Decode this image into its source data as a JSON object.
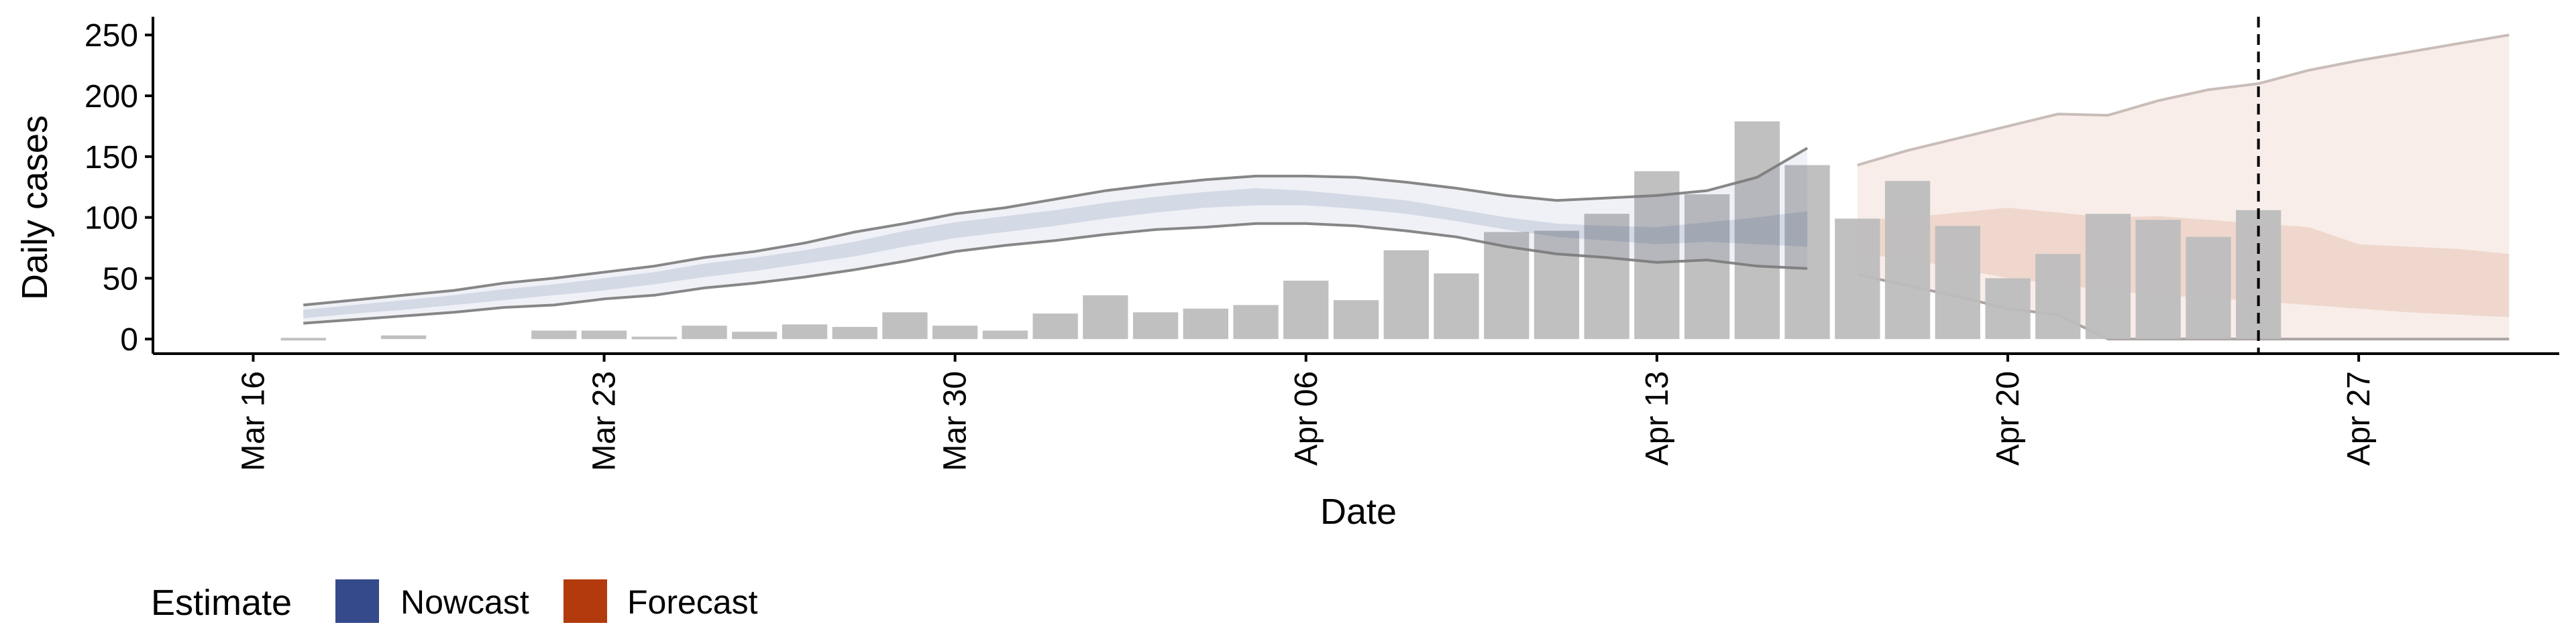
{
  "chart_data": {
    "type": "bar",
    "title": "",
    "xlabel": "Date",
    "ylabel": "Daily cases",
    "ylim": [
      -12,
      265
    ],
    "yticks": [
      0,
      50,
      100,
      150,
      200,
      250
    ],
    "x_ticks": [
      "Mar 16",
      "Mar 23",
      "Mar 30",
      "Apr 06",
      "Apr 13",
      "Apr 20",
      "Apr 27"
    ],
    "x_tick_dates": [
      "2020-03-16",
      "2020-03-23",
      "2020-03-30",
      "2020-04-06",
      "2020-04-13",
      "2020-04-20",
      "2020-04-27"
    ],
    "xlim": [
      "2020-03-14",
      "2020-05-01"
    ],
    "grid": false,
    "vline": {
      "date": "2020-04-25",
      "style": "dashed"
    },
    "legend": {
      "title": "Estimate",
      "placement": "bottom-left",
      "items": [
        {
          "label": "Nowcast",
          "color": "#344a8a"
        },
        {
          "label": "Forecast",
          "color": "#b33a0c"
        }
      ]
    },
    "bars": {
      "color": "#bdbdbd",
      "dates": [
        "2020-03-17",
        "2020-03-18",
        "2020-03-19",
        "2020-03-20",
        "2020-03-21",
        "2020-03-22",
        "2020-03-23",
        "2020-03-24",
        "2020-03-25",
        "2020-03-26",
        "2020-03-27",
        "2020-03-28",
        "2020-03-29",
        "2020-03-30",
        "2020-03-31",
        "2020-04-01",
        "2020-04-02",
        "2020-04-03",
        "2020-04-04",
        "2020-04-05",
        "2020-04-06",
        "2020-04-07",
        "2020-04-08",
        "2020-04-09",
        "2020-04-10",
        "2020-04-11",
        "2020-04-12",
        "2020-04-13",
        "2020-04-14",
        "2020-04-15",
        "2020-04-16",
        "2020-04-17",
        "2020-04-18",
        "2020-04-19",
        "2020-04-20",
        "2020-04-21",
        "2020-04-22",
        "2020-04-23",
        "2020-04-24",
        "2020-04-25"
      ],
      "values": [
        1,
        0,
        3,
        0,
        0,
        7,
        7,
        2,
        11,
        6,
        12,
        10,
        22,
        11,
        7,
        21,
        36,
        22,
        25,
        28,
        48,
        32,
        73,
        54,
        88,
        89,
        103,
        138,
        119,
        179,
        143,
        99,
        130,
        93,
        50,
        70,
        103,
        98,
        84,
        106
      ]
    },
    "nowcast": {
      "color": "#344a8a",
      "dates": [
        "2020-03-17",
        "2020-03-18",
        "2020-03-19",
        "2020-03-20",
        "2020-03-21",
        "2020-03-22",
        "2020-03-23",
        "2020-03-24",
        "2020-03-25",
        "2020-03-26",
        "2020-03-27",
        "2020-03-28",
        "2020-03-29",
        "2020-03-30",
        "2020-03-31",
        "2020-04-01",
        "2020-04-02",
        "2020-04-03",
        "2020-04-04",
        "2020-04-05",
        "2020-04-06",
        "2020-04-07",
        "2020-04-08",
        "2020-04-09",
        "2020-04-10",
        "2020-04-11",
        "2020-04-12",
        "2020-04-13",
        "2020-04-14",
        "2020-04-15",
        "2020-04-16"
      ],
      "lower90": [
        13,
        16,
        19,
        22,
        26,
        28,
        33,
        36,
        42,
        46,
        51,
        57,
        64,
        72,
        77,
        81,
        86,
        90,
        92,
        95,
        95,
        93,
        89,
        84,
        76,
        70,
        67,
        63,
        65,
        60,
        58
      ],
      "lower50": [
        17,
        21,
        24,
        28,
        32,
        36,
        40,
        45,
        51,
        56,
        62,
        68,
        76,
        83,
        88,
        93,
        99,
        104,
        108,
        110,
        110,
        107,
        103,
        97,
        90,
        84,
        81,
        78,
        80,
        78,
        76
      ],
      "upper50": [
        24,
        28,
        32,
        36,
        41,
        45,
        50,
        55,
        62,
        67,
        73,
        80,
        89,
        96,
        101,
        106,
        112,
        117,
        121,
        124,
        122,
        118,
        114,
        107,
        100,
        95,
        93,
        92,
        96,
        100,
        105
      ],
      "upper90": [
        28,
        32,
        36,
        40,
        46,
        50,
        55,
        60,
        67,
        72,
        79,
        88,
        95,
        103,
        108,
        115,
        122,
        127,
        131,
        134,
        134,
        133,
        129,
        124,
        118,
        114,
        116,
        118,
        122,
        133,
        157
      ]
    },
    "forecast": {
      "color": "#b33a0c",
      "dates": [
        "2020-04-17",
        "2020-04-18",
        "2020-04-19",
        "2020-04-20",
        "2020-04-21",
        "2020-04-22",
        "2020-04-23",
        "2020-04-24",
        "2020-04-25",
        "2020-04-26",
        "2020-04-27",
        "2020-04-28",
        "2020-04-29",
        "2020-04-30"
      ],
      "lower90": [
        53,
        44,
        35,
        25,
        20,
        0,
        0,
        0,
        0,
        0,
        0,
        0,
        0,
        0
      ],
      "lower50": [
        70,
        66,
        58,
        50,
        45,
        40,
        36,
        34,
        31,
        28,
        25,
        22,
        20,
        18
      ],
      "upper50": [
        98,
        100,
        104,
        108,
        104,
        100,
        101,
        98,
        95,
        92,
        78,
        76,
        74,
        70
      ],
      "upper90": [
        143,
        155,
        165,
        175,
        185,
        184,
        196,
        205,
        210,
        221,
        229,
        236,
        243,
        250
      ]
    }
  }
}
